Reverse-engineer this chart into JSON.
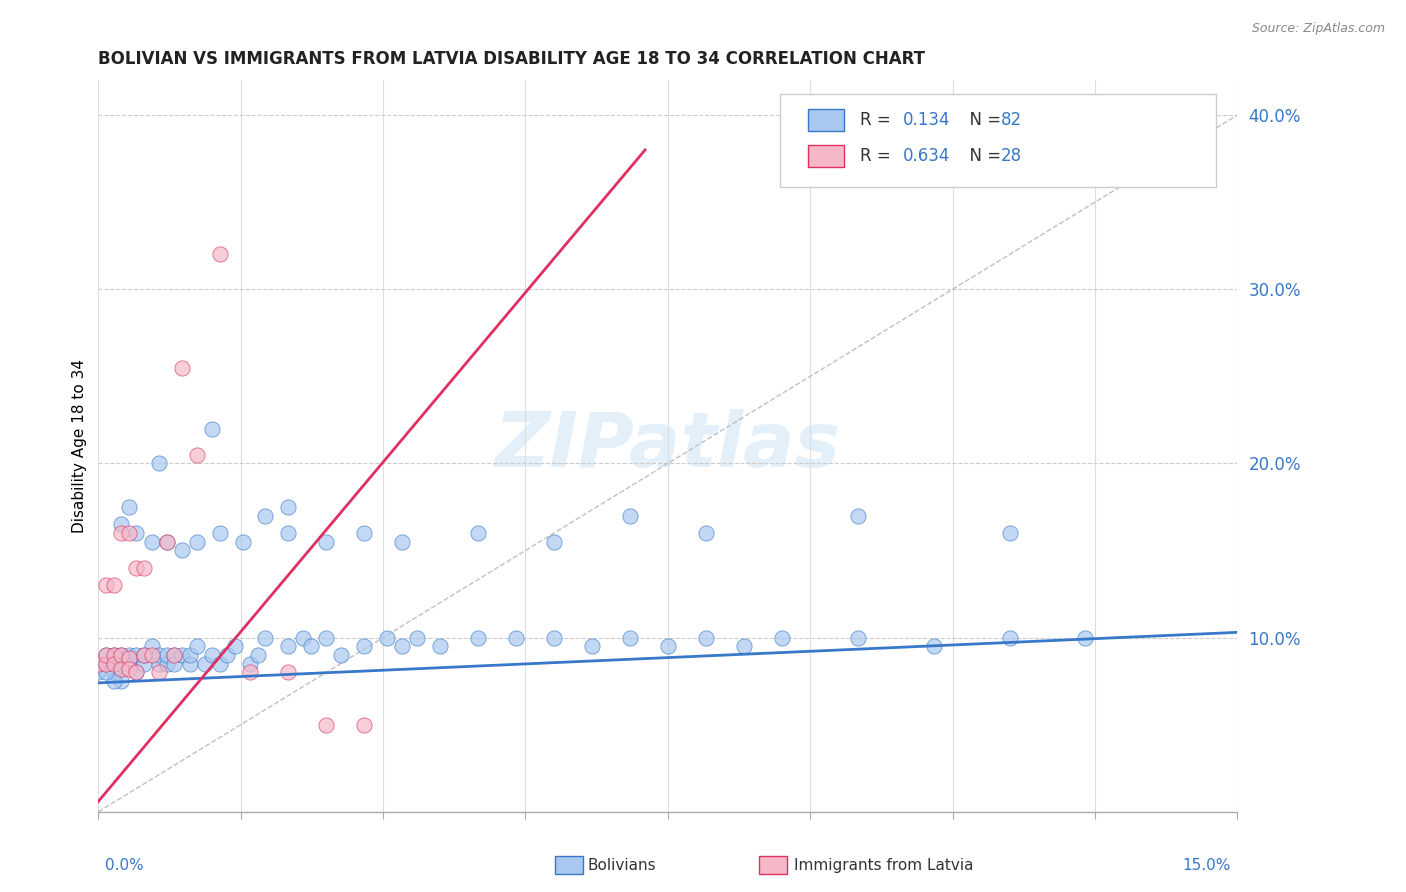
{
  "title": "BOLIVIAN VS IMMIGRANTS FROM LATVIA DISABILITY AGE 18 TO 34 CORRELATION CHART",
  "source": "Source: ZipAtlas.com",
  "ylabel": "Disability Age 18 to 34",
  "blue_color": "#a8c8f0",
  "pink_color": "#f4b8c8",
  "trendline_blue_color": "#3878c8",
  "trendline_pink_color": "#e03060",
  "trendline_diag_color": "#c0c0c0",
  "xlim": [
    0.0,
    0.15
  ],
  "ylim": [
    0.0,
    0.42
  ],
  "yticks": [
    0.0,
    0.1,
    0.2,
    0.3,
    0.4
  ],
  "ytick_labels": [
    "",
    "10.0%",
    "20.0%",
    "30.0%",
    "40.0%"
  ],
  "blue_trend": [
    0.0,
    0.15,
    0.074,
    0.103
  ],
  "pink_trend": [
    -0.005,
    0.072,
    -0.02,
    0.38
  ],
  "diag_line": [
    0.0,
    0.15,
    0.0,
    0.4
  ],
  "blue_x": [
    0.0,
    0.001,
    0.001,
    0.002,
    0.002,
    0.002,
    0.003,
    0.003,
    0.003,
    0.004,
    0.004,
    0.005,
    0.005,
    0.006,
    0.006,
    0.007,
    0.008,
    0.008,
    0.009,
    0.009,
    0.01,
    0.01,
    0.011,
    0.012,
    0.012,
    0.013,
    0.014,
    0.015,
    0.016,
    0.017,
    0.018,
    0.02,
    0.021,
    0.022,
    0.025,
    0.027,
    0.028,
    0.03,
    0.032,
    0.035,
    0.038,
    0.04,
    0.042,
    0.045,
    0.05,
    0.055,
    0.06,
    0.065,
    0.07,
    0.075,
    0.08,
    0.085,
    0.09,
    0.1,
    0.11,
    0.12,
    0.13,
    0.002,
    0.003,
    0.005,
    0.007,
    0.009,
    0.011,
    0.013,
    0.016,
    0.019,
    0.022,
    0.025,
    0.03,
    0.035,
    0.04,
    0.05,
    0.06,
    0.07,
    0.08,
    0.1,
    0.12,
    0.001,
    0.004,
    0.008,
    0.015,
    0.025
  ],
  "blue_y": [
    0.08,
    0.085,
    0.09,
    0.085,
    0.09,
    0.08,
    0.085,
    0.09,
    0.075,
    0.09,
    0.085,
    0.09,
    0.08,
    0.085,
    0.09,
    0.095,
    0.085,
    0.09,
    0.085,
    0.09,
    0.09,
    0.085,
    0.09,
    0.085,
    0.09,
    0.095,
    0.085,
    0.09,
    0.085,
    0.09,
    0.095,
    0.085,
    0.09,
    0.1,
    0.095,
    0.1,
    0.095,
    0.1,
    0.09,
    0.095,
    0.1,
    0.095,
    0.1,
    0.095,
    0.1,
    0.1,
    0.1,
    0.095,
    0.1,
    0.095,
    0.1,
    0.095,
    0.1,
    0.1,
    0.095,
    0.1,
    0.1,
    0.075,
    0.165,
    0.16,
    0.155,
    0.155,
    0.15,
    0.155,
    0.16,
    0.155,
    0.17,
    0.16,
    0.155,
    0.16,
    0.155,
    0.16,
    0.155,
    0.17,
    0.16,
    0.17,
    0.16,
    0.08,
    0.175,
    0.2,
    0.22,
    0.175
  ],
  "pink_x": [
    0.0,
    0.001,
    0.001,
    0.002,
    0.002,
    0.003,
    0.003,
    0.004,
    0.004,
    0.005,
    0.005,
    0.006,
    0.007,
    0.008,
    0.009,
    0.01,
    0.011,
    0.013,
    0.016,
    0.02,
    0.025,
    0.03,
    0.035,
    0.001,
    0.002,
    0.003,
    0.004,
    0.006
  ],
  "pink_y": [
    0.085,
    0.085,
    0.09,
    0.09,
    0.085,
    0.09,
    0.082,
    0.088,
    0.082,
    0.14,
    0.08,
    0.09,
    0.09,
    0.08,
    0.155,
    0.09,
    0.255,
    0.205,
    0.32,
    0.08,
    0.08,
    0.05,
    0.05,
    0.13,
    0.13,
    0.16,
    0.16,
    0.14
  ]
}
